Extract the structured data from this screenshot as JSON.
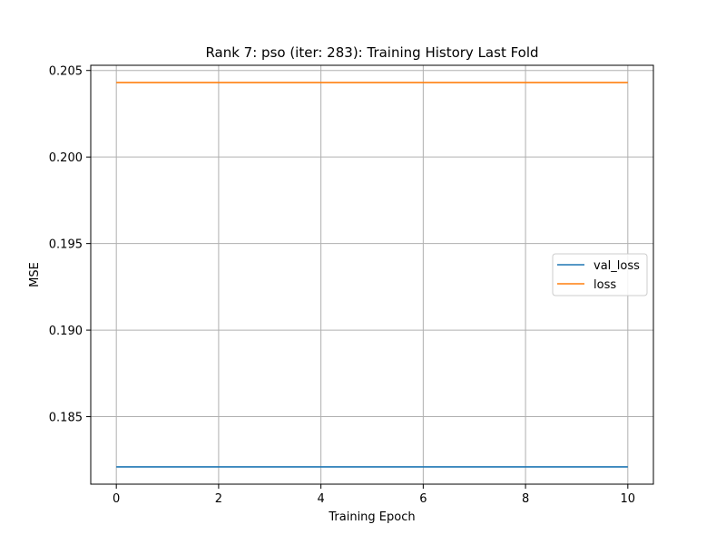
{
  "chart_data": {
    "type": "line",
    "title": "Rank 7: pso (iter: 283): Training History Last Fold",
    "xlabel": "Training Epoch",
    "ylabel": "MSE",
    "xlim": [
      -0.5,
      10.5
    ],
    "ylim": [
      0.1811,
      0.2053
    ],
    "xticks": [
      0,
      2,
      4,
      6,
      8,
      10
    ],
    "xtick_labels": [
      "0",
      "2",
      "4",
      "6",
      "8",
      "10"
    ],
    "yticks": [
      0.185,
      0.19,
      0.195,
      0.2,
      0.205
    ],
    "ytick_labels": [
      "0.185",
      "0.190",
      "0.195",
      "0.200",
      "0.205"
    ],
    "grid": true,
    "legend_position": "center-right",
    "x": [
      0,
      1,
      2,
      3,
      4,
      5,
      6,
      7,
      8,
      9,
      10
    ],
    "series": [
      {
        "name": "val_loss",
        "color": "#1f77b4",
        "values": [
          0.1821,
          0.1821,
          0.1821,
          0.1821,
          0.1821,
          0.1821,
          0.1821,
          0.1821,
          0.1821,
          0.1821,
          0.1821
        ]
      },
      {
        "name": "loss",
        "color": "#ff7f0e",
        "values": [
          0.2043,
          0.2043,
          0.2043,
          0.2043,
          0.2043,
          0.2043,
          0.2043,
          0.2043,
          0.2043,
          0.2043,
          0.2043
        ]
      }
    ]
  }
}
